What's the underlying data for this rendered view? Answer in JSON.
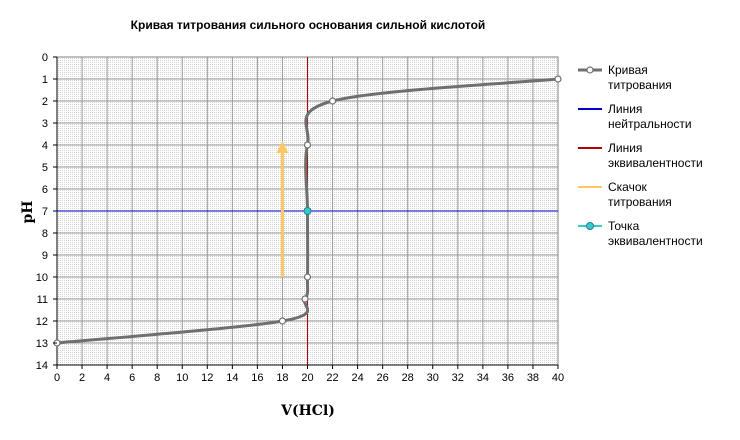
{
  "chart_data": {
    "type": "line",
    "title": "Кривая титрования сильного основания сильной кислотой",
    "xlabel": "V(HCl)",
    "ylabel": "pH",
    "xlim": [
      0,
      40
    ],
    "ylim": [
      0,
      14
    ],
    "y_inverted": true,
    "x_ticks": [
      0,
      2,
      4,
      6,
      8,
      10,
      12,
      14,
      16,
      18,
      20,
      22,
      24,
      26,
      28,
      30,
      32,
      34,
      36,
      38,
      40
    ],
    "y_ticks": [
      0,
      1,
      2,
      3,
      4,
      5,
      6,
      7,
      8,
      9,
      10,
      11,
      12,
      13,
      14
    ],
    "grid": true,
    "legend_position": "right",
    "series": [
      {
        "name": "Кривая титрования",
        "kind": "smooth-line-with-markers",
        "color": "#6f6f6f",
        "x": [
          0,
          18,
          19.8,
          20,
          20,
          20,
          22,
          40
        ],
        "y": [
          13,
          12,
          11,
          10,
          7,
          4,
          2,
          1
        ]
      },
      {
        "name": "Линия нейтральности",
        "kind": "horizontal-line",
        "color": "#0000cc",
        "y": 7
      },
      {
        "name": "Линия эквивалентности",
        "kind": "vertical-line",
        "color": "#b00000",
        "x": 20
      },
      {
        "name": "Скачок титрования",
        "kind": "arrow",
        "color": "#ffc864",
        "x": 18,
        "y_from": 10,
        "y_to": 4
      },
      {
        "name": "Точка эквивалентности",
        "kind": "point",
        "color": "#33cccc",
        "x": 20,
        "y": 7
      }
    ],
    "legend": [
      {
        "line1": "Кривая",
        "line2": "титрования",
        "color": "#6f6f6f",
        "marker": "hollow"
      },
      {
        "line1": "Линия",
        "line2": "нейтральности",
        "color": "#0000cc",
        "marker": "none"
      },
      {
        "line1": "Линия",
        "line2": "эквивалентности",
        "color": "#b00000",
        "marker": "none"
      },
      {
        "line1": "Скачок",
        "line2": "титрования",
        "color": "#ffc864",
        "marker": "none"
      },
      {
        "line1": "Точка",
        "line2": "эквивалентности",
        "color": "#33cccc",
        "marker": "filled"
      }
    ]
  }
}
